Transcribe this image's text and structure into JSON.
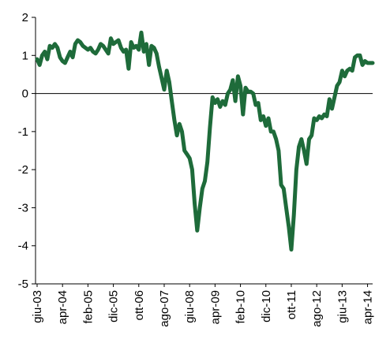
{
  "chart_data": {
    "type": "line",
    "categories": [
      "giu-03",
      null,
      null,
      null,
      null,
      null,
      null,
      null,
      null,
      null,
      "apr-04",
      null,
      null,
      null,
      null,
      null,
      null,
      null,
      null,
      null,
      "feb-05",
      null,
      null,
      null,
      null,
      null,
      null,
      null,
      null,
      null,
      "dic-05",
      null,
      null,
      null,
      null,
      null,
      null,
      null,
      null,
      null,
      "ott-06",
      null,
      null,
      null,
      null,
      null,
      null,
      null,
      null,
      null,
      "ago-07",
      null,
      null,
      null,
      null,
      null,
      null,
      null,
      null,
      null,
      "giu-08",
      null,
      null,
      null,
      null,
      null,
      null,
      null,
      null,
      null,
      "apr-09",
      null,
      null,
      null,
      null,
      null,
      null,
      null,
      null,
      null,
      "feb-10",
      null,
      null,
      null,
      null,
      null,
      null,
      null,
      null,
      null,
      "dic-10",
      null,
      null,
      null,
      null,
      null,
      null,
      null,
      null,
      null,
      "ott-11",
      null,
      null,
      null,
      null,
      null,
      null,
      null,
      null,
      null,
      "ago-12",
      null,
      null,
      null,
      null,
      null,
      null,
      null,
      null,
      null,
      "giu-13",
      null,
      null,
      null,
      null,
      null,
      null,
      null,
      null,
      null,
      "apr-14",
      null,
      null
    ],
    "values": [
      0.9,
      0.75,
      1.0,
      1.1,
      0.9,
      1.25,
      1.2,
      1.3,
      1.2,
      0.95,
      0.85,
      0.8,
      0.95,
      1.1,
      0.95,
      1.3,
      1.4,
      1.35,
      1.25,
      1.2,
      1.15,
      1.2,
      1.1,
      1.05,
      1.15,
      1.3,
      1.25,
      1.15,
      1.05,
      1.45,
      1.3,
      1.35,
      1.4,
      1.2,
      1.1,
      1.15,
      0.65,
      1.35,
      1.2,
      1.25,
      1.15,
      1.6,
      1.1,
      1.3,
      0.75,
      1.25,
      1.2,
      1.05,
      0.7,
      0.4,
      0.1,
      0.6,
      0.3,
      -0.2,
      -0.7,
      -1.1,
      -0.8,
      -1.0,
      -1.5,
      -1.6,
      -1.7,
      -2.0,
      -2.9,
      -3.6,
      -3.0,
      -2.5,
      -2.3,
      -1.8,
      -0.9,
      -0.1,
      -0.25,
      -0.15,
      -0.35,
      -0.2,
      -0.3,
      0.0,
      0.1,
      0.35,
      -0.2,
      0.45,
      0.2,
      -0.55,
      0.15,
      0.05,
      0.05,
      0.0,
      -0.3,
      -0.25,
      -0.7,
      -0.6,
      -0.85,
      -0.65,
      -1.0,
      -1.0,
      -1.2,
      -1.5,
      -2.4,
      -2.5,
      -3.0,
      -3.5,
      -4.1,
      -3.2,
      -2.0,
      -1.4,
      -1.2,
      -1.5,
      -1.85,
      -1.2,
      -1.1,
      -0.65,
      -0.7,
      -0.6,
      -0.65,
      -0.55,
      -0.6,
      -0.15,
      -0.4,
      -0.1,
      0.2,
      0.3,
      0.6,
      0.45,
      0.6,
      0.65,
      0.6,
      0.95,
      1.0,
      1.0,
      0.75,
      0.85,
      0.8,
      0.8,
      0.8
    ],
    "color": "#1e6b3a",
    "ylim": [
      -5,
      2
    ],
    "yticks": [
      -5,
      -4,
      -3,
      -2,
      -1,
      0,
      1,
      2
    ]
  }
}
